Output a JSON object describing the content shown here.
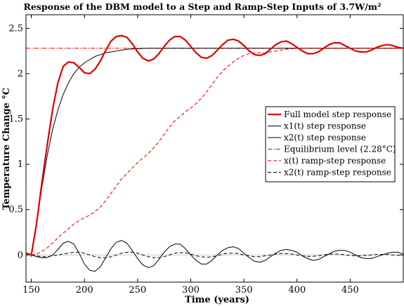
{
  "chart_data": {
    "type": "line",
    "title": "Response of the DBM model to a Step and Ramp-Step Inputs of 3.7W/m²",
    "xlabel": "Time (years)",
    "ylabel": "Temperature Change °C",
    "xlim": [
      145,
      500
    ],
    "ylim": [
      -0.3,
      2.65
    ],
    "xticks": [
      150,
      200,
      250,
      300,
      350,
      400,
      450
    ],
    "yticks": [
      0,
      0.5,
      1,
      1.5,
      2,
      2.5
    ],
    "grid": false,
    "legend_position": "right-middle",
    "step_start": 150,
    "equilibrium": 2.28,
    "series": [
      {
        "name": "Full model step response",
        "color": "#e00000",
        "style": "solid",
        "width": 2.2,
        "points": [
          [
            145,
            0.02
          ],
          [
            150,
            0
          ],
          [
            155,
            0.35
          ],
          [
            160,
            0.8
          ],
          [
            165,
            1.22
          ],
          [
            170,
            1.6
          ],
          [
            175,
            1.9
          ],
          [
            180,
            2.08
          ],
          [
            185,
            2.13
          ],
          [
            190,
            2.12
          ],
          [
            195,
            2.07
          ],
          [
            200,
            2.01
          ],
          [
            205,
            2.0
          ],
          [
            210,
            2.05
          ],
          [
            215,
            2.14
          ],
          [
            220,
            2.26
          ],
          [
            225,
            2.36
          ],
          [
            230,
            2.41
          ],
          [
            235,
            2.42
          ],
          [
            240,
            2.4
          ],
          [
            245,
            2.33
          ],
          [
            250,
            2.24
          ],
          [
            255,
            2.17
          ],
          [
            260,
            2.14
          ],
          [
            265,
            2.16
          ],
          [
            270,
            2.22
          ],
          [
            275,
            2.3
          ],
          [
            280,
            2.37
          ],
          [
            285,
            2.41
          ],
          [
            290,
            2.41
          ],
          [
            295,
            2.37
          ],
          [
            300,
            2.3
          ],
          [
            305,
            2.23
          ],
          [
            310,
            2.18
          ],
          [
            315,
            2.17
          ],
          [
            320,
            2.2
          ],
          [
            325,
            2.26
          ],
          [
            330,
            2.32
          ],
          [
            335,
            2.37
          ],
          [
            340,
            2.38
          ],
          [
            345,
            2.36
          ],
          [
            350,
            2.31
          ],
          [
            355,
            2.25
          ],
          [
            360,
            2.21
          ],
          [
            365,
            2.2
          ],
          [
            370,
            2.22
          ],
          [
            375,
            2.27
          ],
          [
            380,
            2.32
          ],
          [
            385,
            2.35
          ],
          [
            390,
            2.36
          ],
          [
            395,
            2.33
          ],
          [
            400,
            2.29
          ],
          [
            405,
            2.25
          ],
          [
            410,
            2.22
          ],
          [
            415,
            2.22
          ],
          [
            420,
            2.24
          ],
          [
            425,
            2.28
          ],
          [
            430,
            2.32
          ],
          [
            435,
            2.34
          ],
          [
            440,
            2.34
          ],
          [
            445,
            2.31
          ],
          [
            450,
            2.28
          ],
          [
            455,
            2.25
          ],
          [
            460,
            2.24
          ],
          [
            465,
            2.24
          ],
          [
            470,
            2.26
          ],
          [
            475,
            2.29
          ],
          [
            480,
            2.31
          ],
          [
            485,
            2.32
          ],
          [
            490,
            2.31
          ],
          [
            495,
            2.29
          ],
          [
            500,
            2.28
          ]
        ]
      },
      {
        "name": "x1(t) step response",
        "color": "#000000",
        "style": "solid",
        "width": 1,
        "points": [
          [
            145,
            0.02
          ],
          [
            150,
            0
          ],
          [
            155,
            0.35
          ],
          [
            160,
            0.75
          ],
          [
            165,
            1.1
          ],
          [
            170,
            1.38
          ],
          [
            175,
            1.6
          ],
          [
            180,
            1.77
          ],
          [
            185,
            1.9
          ],
          [
            190,
            2.0
          ],
          [
            195,
            2.07
          ],
          [
            200,
            2.12
          ],
          [
            210,
            2.19
          ],
          [
            220,
            2.23
          ],
          [
            230,
            2.25
          ],
          [
            240,
            2.27
          ],
          [
            250,
            2.275
          ],
          [
            260,
            2.28
          ],
          [
            280,
            2.28
          ],
          [
            300,
            2.28
          ],
          [
            350,
            2.28
          ],
          [
            400,
            2.28
          ],
          [
            450,
            2.28
          ],
          [
            500,
            2.28
          ]
        ]
      },
      {
        "name": "x2(t) step response",
        "color": "#000000",
        "style": "solid",
        "width": 1,
        "points": [
          [
            145,
            0.02
          ],
          [
            150,
            0
          ],
          [
            155,
            -0.02
          ],
          [
            160,
            -0.03
          ],
          [
            165,
            -0.03
          ],
          [
            170,
            0.0
          ],
          [
            175,
            0.06
          ],
          [
            180,
            0.13
          ],
          [
            185,
            0.15
          ],
          [
            190,
            0.12
          ],
          [
            195,
            0.02
          ],
          [
            200,
            -0.1
          ],
          [
            205,
            -0.17
          ],
          [
            210,
            -0.18
          ],
          [
            215,
            -0.13
          ],
          [
            220,
            -0.03
          ],
          [
            225,
            0.07
          ],
          [
            230,
            0.14
          ],
          [
            235,
            0.16
          ],
          [
            240,
            0.13
          ],
          [
            245,
            0.05
          ],
          [
            250,
            -0.04
          ],
          [
            255,
            -0.11
          ],
          [
            260,
            -0.14
          ],
          [
            265,
            -0.12
          ],
          [
            270,
            -0.05
          ],
          [
            275,
            0.03
          ],
          [
            280,
            0.09
          ],
          [
            285,
            0.12
          ],
          [
            290,
            0.12
          ],
          [
            295,
            0.07
          ],
          [
            300,
            0.0
          ],
          [
            305,
            -0.06
          ],
          [
            310,
            -0.1
          ],
          [
            315,
            -0.1
          ],
          [
            320,
            -0.06
          ],
          [
            325,
            0.0
          ],
          [
            330,
            0.05
          ],
          [
            335,
            0.08
          ],
          [
            340,
            0.09
          ],
          [
            345,
            0.07
          ],
          [
            350,
            0.02
          ],
          [
            355,
            -0.03
          ],
          [
            360,
            -0.07
          ],
          [
            365,
            -0.08
          ],
          [
            370,
            -0.06
          ],
          [
            375,
            -0.02
          ],
          [
            380,
            0.02
          ],
          [
            385,
            0.05
          ],
          [
            390,
            0.06
          ],
          [
            395,
            0.05
          ],
          [
            400,
            0.03
          ],
          [
            405,
            -0.01
          ],
          [
            410,
            -0.04
          ],
          [
            415,
            -0.06
          ],
          [
            420,
            -0.05
          ],
          [
            425,
            -0.02
          ],
          [
            430,
            0.01
          ],
          [
            435,
            0.04
          ],
          [
            440,
            0.05
          ],
          [
            445,
            0.05
          ],
          [
            450,
            0.03
          ],
          [
            455,
            0.0
          ],
          [
            460,
            -0.03
          ],
          [
            465,
            -0.04
          ],
          [
            470,
            -0.04
          ],
          [
            475,
            -0.02
          ],
          [
            480,
            0.0
          ],
          [
            485,
            0.02
          ],
          [
            490,
            0.03
          ],
          [
            495,
            0.03
          ],
          [
            500,
            0.01
          ]
        ]
      },
      {
        "name": "Equilibrium level (2.28°C)",
        "color": "#e00000",
        "style": "dashdot",
        "width": 1,
        "points": [
          [
            145,
            2.28
          ],
          [
            500,
            2.28
          ]
        ]
      },
      {
        "name": "x(t) ramp-step response",
        "color": "#e00000",
        "style": "dashed",
        "width": 1,
        "points": [
          [
            145,
            0.02
          ],
          [
            150,
            0
          ],
          [
            155,
            0.01
          ],
          [
            160,
            0.04
          ],
          [
            165,
            0.08
          ],
          [
            170,
            0.13
          ],
          [
            175,
            0.19
          ],
          [
            180,
            0.24
          ],
          [
            185,
            0.29
          ],
          [
            190,
            0.34
          ],
          [
            195,
            0.38
          ],
          [
            200,
            0.41
          ],
          [
            205,
            0.44
          ],
          [
            210,
            0.48
          ],
          [
            215,
            0.53
          ],
          [
            220,
            0.6
          ],
          [
            225,
            0.68
          ],
          [
            230,
            0.76
          ],
          [
            235,
            0.84
          ],
          [
            240,
            0.9
          ],
          [
            245,
            0.96
          ],
          [
            250,
            1.02
          ],
          [
            255,
            1.07
          ],
          [
            260,
            1.12
          ],
          [
            265,
            1.18
          ],
          [
            270,
            1.25
          ],
          [
            275,
            1.33
          ],
          [
            280,
            1.41
          ],
          [
            285,
            1.48
          ],
          [
            290,
            1.53
          ],
          [
            295,
            1.58
          ],
          [
            300,
            1.62
          ],
          [
            305,
            1.67
          ],
          [
            310,
            1.73
          ],
          [
            315,
            1.8
          ],
          [
            320,
            1.88
          ],
          [
            325,
            1.96
          ],
          [
            330,
            2.03
          ],
          [
            335,
            2.08
          ],
          [
            340,
            2.13
          ],
          [
            345,
            2.17
          ],
          [
            350,
            2.2
          ],
          [
            355,
            2.22
          ],
          [
            360,
            2.23
          ],
          [
            365,
            2.23
          ],
          [
            370,
            2.23
          ],
          [
            375,
            2.24
          ],
          [
            380,
            2.25
          ],
          [
            385,
            2.26
          ],
          [
            390,
            2.27
          ],
          [
            400,
            2.28
          ],
          [
            420,
            2.28
          ],
          [
            450,
            2.28
          ],
          [
            475,
            2.28
          ],
          [
            500,
            2.28
          ]
        ]
      },
      {
        "name": "x2(t) ramp-step response",
        "color": "#000000",
        "style": "dashed",
        "width": 1,
        "points": [
          [
            145,
            0.02
          ],
          [
            150,
            0
          ],
          [
            155,
            -0.01
          ],
          [
            160,
            -0.02
          ],
          [
            165,
            -0.02
          ],
          [
            170,
            -0.01
          ],
          [
            175,
            0.0
          ],
          [
            180,
            0.01
          ],
          [
            185,
            0.02
          ],
          [
            190,
            0.03
          ],
          [
            195,
            0.03
          ],
          [
            200,
            0.02
          ],
          [
            205,
            0.0
          ],
          [
            210,
            -0.02
          ],
          [
            215,
            -0.03
          ],
          [
            220,
            -0.03
          ],
          [
            225,
            -0.02
          ],
          [
            230,
            0.0
          ],
          [
            235,
            0.02
          ],
          [
            240,
            0.03
          ],
          [
            245,
            0.03
          ],
          [
            250,
            0.02
          ],
          [
            255,
            0.0
          ],
          [
            260,
            -0.02
          ],
          [
            265,
            -0.03
          ],
          [
            270,
            -0.03
          ],
          [
            275,
            -0.02
          ],
          [
            280,
            0.0
          ],
          [
            285,
            0.02
          ],
          [
            290,
            0.025
          ],
          [
            295,
            0.025
          ],
          [
            300,
            0.01
          ],
          [
            305,
            -0.01
          ],
          [
            310,
            -0.02
          ],
          [
            315,
            -0.025
          ],
          [
            320,
            -0.02
          ],
          [
            325,
            -0.01
          ],
          [
            330,
            0.01
          ],
          [
            335,
            0.02
          ],
          [
            340,
            0.02
          ],
          [
            345,
            0.015
          ],
          [
            350,
            0.0
          ],
          [
            355,
            -0.01
          ],
          [
            360,
            -0.02
          ],
          [
            365,
            -0.02
          ],
          [
            370,
            -0.01
          ],
          [
            375,
            0.0
          ],
          [
            380,
            0.01
          ],
          [
            385,
            0.015
          ],
          [
            390,
            0.015
          ],
          [
            395,
            0.01
          ],
          [
            400,
            0.0
          ],
          [
            405,
            -0.01
          ],
          [
            410,
            -0.015
          ],
          [
            415,
            -0.015
          ],
          [
            420,
            -0.01
          ],
          [
            425,
            0.0
          ],
          [
            430,
            0.01
          ],
          [
            435,
            0.01
          ],
          [
            440,
            0.01
          ],
          [
            445,
            0.0
          ],
          [
            450,
            -0.005
          ],
          [
            455,
            -0.01
          ],
          [
            460,
            -0.01
          ],
          [
            465,
            -0.005
          ],
          [
            470,
            0.0
          ],
          [
            475,
            0.005
          ],
          [
            480,
            0.005
          ],
          [
            485,
            0.005
          ],
          [
            490,
            0.0
          ],
          [
            495,
            -0.005
          ],
          [
            500,
            0.0
          ]
        ]
      }
    ]
  }
}
